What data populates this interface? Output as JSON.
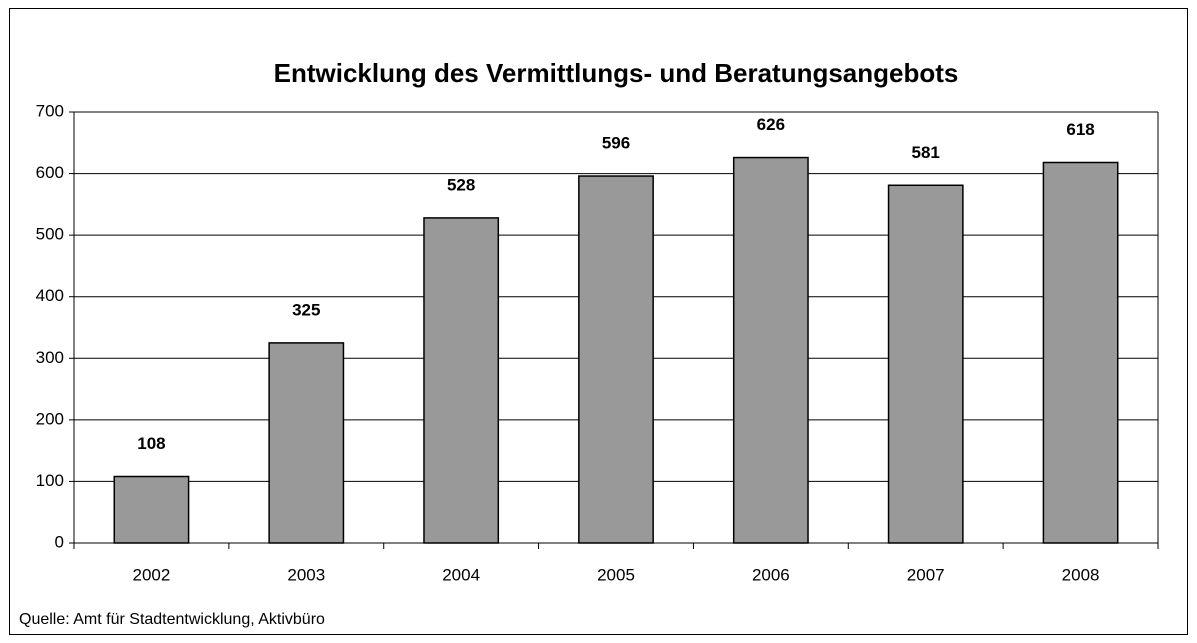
{
  "chart_data": {
    "type": "bar",
    "title": "Entwicklung des Vermittlungs- und Beratungsangebots",
    "categories": [
      "2002",
      "2003",
      "2004",
      "2005",
      "2006",
      "2007",
      "2008"
    ],
    "values": [
      108,
      325,
      528,
      596,
      626,
      581,
      618
    ],
    "color": "#999999",
    "ylim": [
      0,
      700
    ],
    "yticks": [
      0,
      100,
      200,
      300,
      400,
      500,
      600,
      700
    ],
    "grid": true,
    "source": "Quelle: Amt für Stadtentwicklung, Aktivbüro"
  }
}
